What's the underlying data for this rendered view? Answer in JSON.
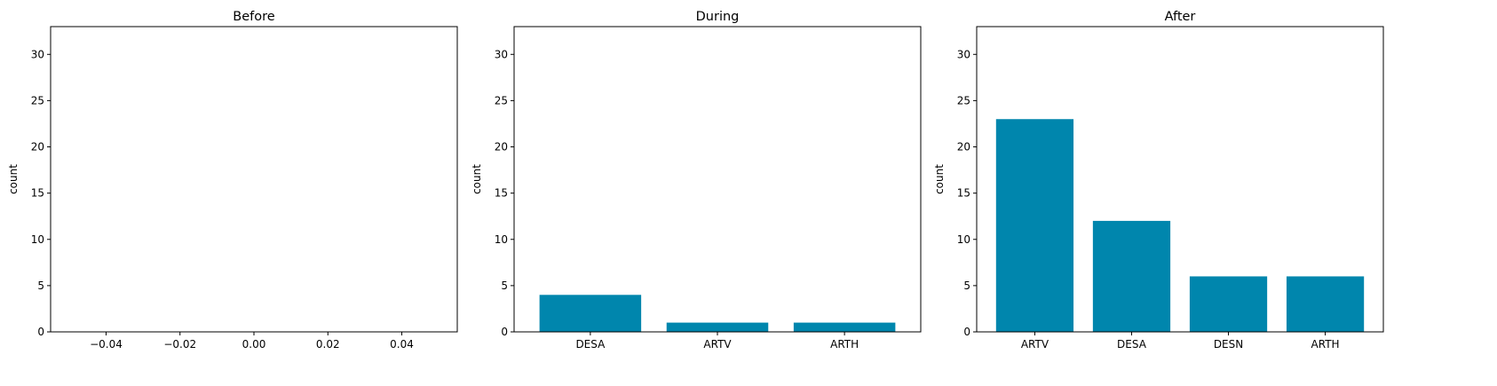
{
  "figure": {
    "background": "#ffffff",
    "bar_color": "#0086ad"
  },
  "chart_data": [
    {
      "type": "bar",
      "title": "Before",
      "xlabel": "",
      "ylabel": "count",
      "categories": [],
      "values": [],
      "xlim": [
        -0.055,
        0.055
      ],
      "xticks": [
        -0.04,
        -0.02,
        0.0,
        0.02,
        0.04
      ],
      "xtick_labels": [
        "−0.04",
        "−0.02",
        "0.00",
        "0.02",
        "0.04"
      ],
      "ylim": [
        0,
        33
      ],
      "yticks": [
        0,
        5,
        10,
        15,
        20,
        25,
        30
      ],
      "grid": false
    },
    {
      "type": "bar",
      "title": "During",
      "xlabel": "",
      "ylabel": "count",
      "categories": [
        "DESA",
        "ARTV",
        "ARTH"
      ],
      "values": [
        4,
        1,
        1
      ],
      "ylim": [
        0,
        33
      ],
      "yticks": [
        0,
        5,
        10,
        15,
        20,
        25,
        30
      ],
      "grid": false
    },
    {
      "type": "bar",
      "title": "After",
      "xlabel": "",
      "ylabel": "count",
      "categories": [
        "ARTV",
        "DESA",
        "DESN",
        "ARTH"
      ],
      "values": [
        23,
        12,
        6,
        6
      ],
      "ylim": [
        0,
        33
      ],
      "yticks": [
        0,
        5,
        10,
        15,
        20,
        25,
        30
      ],
      "grid": false
    }
  ]
}
